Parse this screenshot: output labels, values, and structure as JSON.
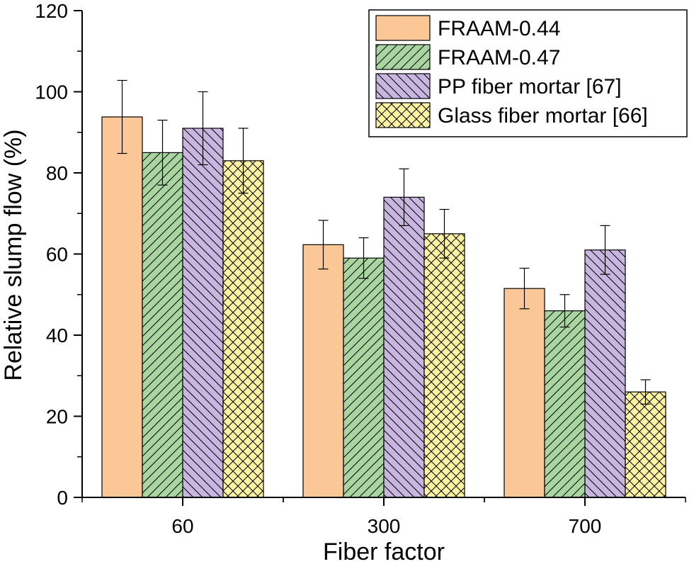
{
  "chart_data": {
    "type": "bar",
    "title": "",
    "xlabel": "Fiber factor",
    "ylabel": "Relative slump flow (%)",
    "ylim": [
      0,
      120
    ],
    "yticks": [
      0,
      20,
      40,
      60,
      80,
      100,
      120
    ],
    "categories": [
      "60",
      "300",
      "700"
    ],
    "legend_position": "top-right",
    "series": [
      {
        "name": "FRAAM-0.44",
        "color": "#fcc797",
        "pattern": "solid",
        "values": [
          93.8,
          62.3,
          51.5
        ],
        "errors": [
          9.0,
          6.0,
          5.0
        ]
      },
      {
        "name": "FRAAM-0.47",
        "color": "#a8d5a0",
        "pattern": "diagonal-forward",
        "values": [
          85.0,
          59.0,
          46.0
        ],
        "errors": [
          8.0,
          5.0,
          4.0
        ]
      },
      {
        "name": "PP fiber mortar [67]",
        "color": "#c8b6e0",
        "pattern": "diagonal-backward",
        "values": [
          91.0,
          74.0,
          61.0
        ],
        "errors": [
          9.0,
          7.0,
          6.0
        ]
      },
      {
        "name": "Glass fiber mortar [66]",
        "color": "#fdf3a0",
        "pattern": "crosshatch",
        "values": [
          83.0,
          65.0,
          26.0
        ],
        "errors": [
          8.0,
          6.0,
          3.0
        ]
      }
    ]
  }
}
